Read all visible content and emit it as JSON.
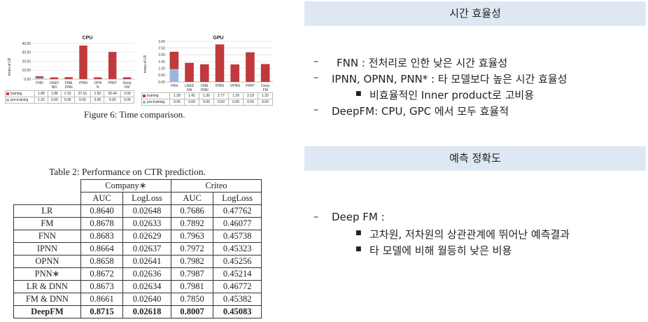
{
  "cpu_chart": {
    "title": "CPU",
    "ylabel": "times of LR",
    "colors": {
      "training": "#c0393d",
      "pretraining": "#9db6dc"
    },
    "ticks": [
      "40.00",
      "30.00",
      "20.00",
      "10.00",
      "0.00"
    ],
    "table_rows": [
      "training",
      "pre-training"
    ]
  },
  "gpu_chart": {
    "title": "GPU",
    "ylabel": "times of LR",
    "colors": {
      "training": "#c0393d",
      "pretraining": "#9db6dc"
    },
    "ticks": [
      "3.00",
      "2.50",
      "2.00",
      "1.50",
      "1.00",
      "0.50",
      "0.00"
    ],
    "table_rows": [
      "training",
      "pre-training"
    ]
  },
  "chart_data": [
    {
      "type": "bar",
      "title": "CPU",
      "ylabel": "times of LR",
      "ylim": [
        0,
        40
      ],
      "categories": [
        "FNN",
        "LR&D NN",
        "FM& DNN",
        "IPNN",
        "OPN N",
        "PNN*",
        "Deep FM"
      ],
      "series": [
        {
          "name": "training",
          "values": [
            1.89,
            1.89,
            2.15,
            37.61,
            1.92,
            30.44,
            2.0
          ],
          "labels": [
            "1.89",
            "1.89",
            "2.15",
            "37.61",
            "1.92",
            "30.44",
            "2.00"
          ]
        },
        {
          "name": "pre-training",
          "values": [
            1.32,
            0.0,
            0.0,
            0.0,
            0.0,
            0.0,
            0.0
          ],
          "labels": [
            "1.32",
            "0.00",
            "0.00",
            "0.00",
            "0.00",
            "0.00",
            "0.00"
          ]
        }
      ]
    },
    {
      "type": "bar",
      "title": "GPU",
      "ylabel": "times of LR",
      "ylim": [
        0,
        3
      ],
      "categories": [
        "FNN",
        "LR&D NN",
        "FM& DNN",
        "IPNN",
        "OPNN",
        "PNN*",
        "Deep FM"
      ],
      "series": [
        {
          "name": "training",
          "values": [
            1.28,
            1.41,
            1.3,
            2.77,
            1.29,
            2.19,
            1.32
          ],
          "labels": [
            "1.28",
            "1.41",
            "1.30",
            "2.77",
            "1.29",
            "2.19",
            "1.32"
          ]
        },
        {
          "name": "pre-training",
          "values": [
            0.95,
            0.0,
            0.0,
            0.0,
            0.0,
            0.0,
            0.0
          ],
          "labels": [
            "0.95",
            "0.00",
            "0.00",
            "0.00",
            "0.00",
            "0.00",
            "0.00"
          ]
        }
      ]
    }
  ],
  "figure_caption": "Figure 6: Time comparison.",
  "perf_table": {
    "caption": "Table 2: Performance on CTR prediction.",
    "groups": [
      "Company∗",
      "Criteo"
    ],
    "columns": [
      "AUC",
      "LogLoss",
      "AUC",
      "LogLoss"
    ],
    "rows": [
      [
        "LR",
        "0.8640",
        "0.02648",
        "0.7686",
        "0.47762"
      ],
      [
        "FM",
        "0.8678",
        "0.02633",
        "0.7892",
        "0.46077"
      ],
      [
        "FNN",
        "0.8683",
        "0.02629",
        "0.7963",
        "0.45738"
      ],
      [
        "IPNN",
        "0.8664",
        "0.02637",
        "0.7972",
        "0.45323"
      ],
      [
        "OPNN",
        "0.8658",
        "0.02641",
        "0.7982",
        "0.45256"
      ],
      [
        "PNN∗",
        "0.8672",
        "0.02636",
        "0.7987",
        "0.45214"
      ],
      [
        "LR & DNN",
        "0.8673",
        "0.02634",
        "0.7981",
        "0.46772"
      ],
      [
        "FM & DNN",
        "0.8661",
        "0.02640",
        "0.7850",
        "0.45382"
      ],
      [
        "DeepFM",
        "0.8715",
        "0.02618",
        "0.8007",
        "0.45083"
      ]
    ]
  },
  "section1": {
    "header": "시간 효율성",
    "bullets": [
      {
        "level": 1,
        "marker": "–",
        "text": "FNN : 전처리로 인한 낮은 시간 효율성"
      },
      {
        "level": 1,
        "marker": "–",
        "text": "IPNN, OPNN, PNN* : 타 모델보다 높은 시간 효율성"
      },
      {
        "level": 2,
        "marker": "■",
        "text": "비효율적인 Inner product로 고비용"
      },
      {
        "level": 1,
        "marker": "–",
        "text": "DeepFM: CPU, GPC 에서 모두 효율적"
      }
    ]
  },
  "section2": {
    "header": "예측 정확도",
    "bullets": [
      {
        "level": 1,
        "marker": "–",
        "text": "Deep FM :"
      },
      {
        "level": 2,
        "marker": "■",
        "text": "고차원, 저차원의 상관관계에 뛰어난 예측결과"
      },
      {
        "level": 2,
        "marker": "■",
        "text": "타 모델에 비해 월등히 낮은 비용"
      }
    ]
  }
}
